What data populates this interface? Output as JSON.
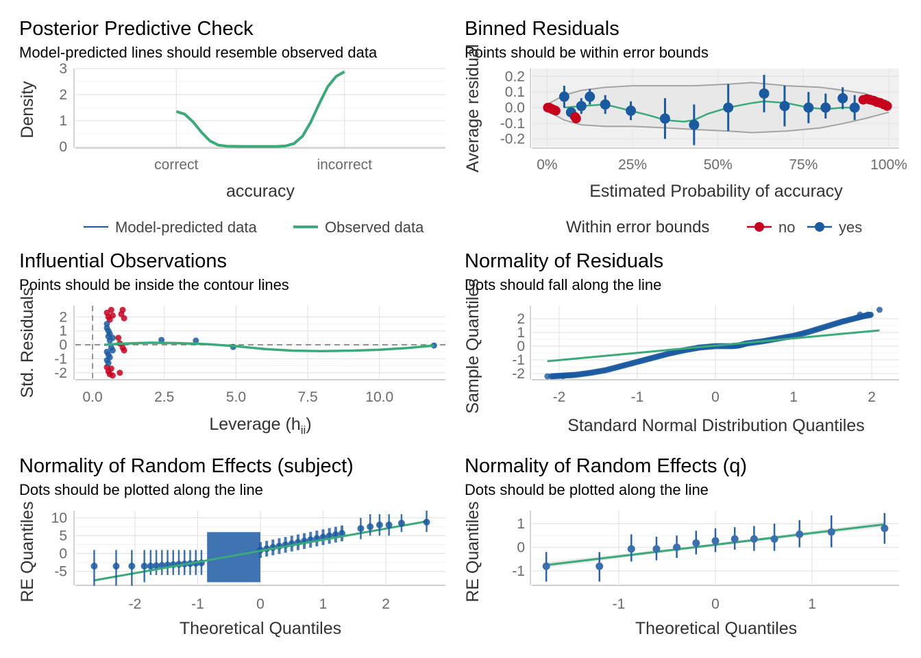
{
  "colors": {
    "green": "#3aaa78",
    "blue": "#1a5aa0",
    "red": "#c8001e",
    "grid": "#e3e3e3",
    "band": "#f0f0f0",
    "contour": "#a3a3a3"
  },
  "chart_data": [
    {
      "id": "ppc",
      "type": "line",
      "title": "Posterior Predictive Check",
      "subtitle": "Model-predicted lines should resemble observed data",
      "xlabel": "accuracy",
      "ylabel": "Density",
      "categories": [
        "correct",
        "incorrect"
      ],
      "yticks": [
        "0",
        "1",
        "2",
        "3"
      ],
      "ylim": [
        0,
        3
      ],
      "series": [
        {
          "name": "Observed data",
          "x": [
            0,
            0.05,
            0.1,
            0.15,
            0.2,
            0.25,
            0.3,
            0.4,
            0.5,
            0.6,
            0.65,
            0.7,
            0.75,
            0.8,
            0.85,
            0.9,
            0.95,
            1.0
          ],
          "y": [
            1.35,
            1.25,
            0.95,
            0.55,
            0.22,
            0.06,
            0.02,
            0.01,
            0.01,
            0.01,
            0.03,
            0.12,
            0.4,
            0.95,
            1.65,
            2.3,
            2.7,
            2.88
          ]
        }
      ],
      "legend": [
        "Model-predicted data",
        "Observed data"
      ],
      "legend_position": "bottom"
    },
    {
      "id": "binned",
      "type": "scatter",
      "title": "Binned Residuals",
      "subtitle": "Points should be within error bounds",
      "xlabel": "Estimated Probability of accuracy",
      "ylabel": "Average residual",
      "xticks": [
        "0%",
        "25%",
        "50%",
        "75%",
        "100%"
      ],
      "yticks": [
        "-0.2",
        "-0.1",
        "0.0",
        "0.1",
        "0.2"
      ],
      "xlim": [
        0,
        1
      ],
      "ylim": [
        -0.25,
        0.25
      ],
      "legend_title": "Within error bounds",
      "legend": [
        "no",
        "yes"
      ],
      "legend_position": "bottom",
      "yes_points": [
        {
          "x": 0.05,
          "y": 0.07,
          "lo": 0.0,
          "hi": 0.14
        },
        {
          "x": 0.07,
          "y": -0.03,
          "lo": -0.07,
          "hi": 0.0
        },
        {
          "x": 0.1,
          "y": 0.01,
          "lo": -0.04,
          "hi": 0.06
        },
        {
          "x": 0.125,
          "y": 0.07,
          "lo": 0.02,
          "hi": 0.12
        },
        {
          "x": 0.17,
          "y": 0.02,
          "lo": -0.04,
          "hi": 0.08
        },
        {
          "x": 0.245,
          "y": -0.02,
          "lo": -0.08,
          "hi": 0.04
        },
        {
          "x": 0.345,
          "y": -0.07,
          "lo": -0.2,
          "hi": 0.06
        },
        {
          "x": 0.43,
          "y": -0.11,
          "lo": -0.24,
          "hi": 0.02
        },
        {
          "x": 0.53,
          "y": 0.0,
          "lo": -0.15,
          "hi": 0.15
        },
        {
          "x": 0.635,
          "y": 0.09,
          "lo": -0.03,
          "hi": 0.21
        },
        {
          "x": 0.695,
          "y": 0.01,
          "lo": -0.12,
          "hi": 0.14
        },
        {
          "x": 0.765,
          "y": 0.0,
          "lo": -0.1,
          "hi": 0.1
        },
        {
          "x": 0.815,
          "y": 0.0,
          "lo": -0.07,
          "hi": 0.09
        },
        {
          "x": 0.865,
          "y": 0.06,
          "lo": -0.01,
          "hi": 0.13
        },
        {
          "x": 0.9,
          "y": 0.0,
          "lo": -0.08,
          "hi": 0.08
        }
      ],
      "no_points": [
        {
          "x": 0.002,
          "y": 0.0
        },
        {
          "x": 0.006,
          "y": 0.0
        },
        {
          "x": 0.01,
          "y": -0.005
        },
        {
          "x": 0.015,
          "y": -0.01
        },
        {
          "x": 0.02,
          "y": -0.015
        },
        {
          "x": 0.025,
          "y": -0.02
        },
        {
          "x": 0.082,
          "y": -0.06
        },
        {
          "x": 0.085,
          "y": -0.07
        },
        {
          "x": 0.925,
          "y": 0.05
        },
        {
          "x": 0.935,
          "y": 0.055
        },
        {
          "x": 0.945,
          "y": 0.05
        },
        {
          "x": 0.955,
          "y": 0.045
        },
        {
          "x": 0.965,
          "y": 0.035
        },
        {
          "x": 0.975,
          "y": 0.03
        },
        {
          "x": 0.985,
          "y": 0.02
        },
        {
          "x": 0.995,
          "y": 0.01
        }
      ],
      "smooth": {
        "x": [
          0.05,
          0.1,
          0.17,
          0.245,
          0.3,
          0.345,
          0.4,
          0.43,
          0.47,
          0.53,
          0.6,
          0.635,
          0.7,
          0.765,
          0.815,
          0.865,
          0.9
        ],
        "y": [
          0.0,
          0.01,
          0.02,
          -0.02,
          -0.05,
          -0.08,
          -0.09,
          -0.08,
          -0.04,
          0.0,
          0.03,
          0.04,
          0.03,
          0.0,
          -0.01,
          0.0,
          0.0
        ]
      },
      "bounds_upper": {
        "x": [
          0.0,
          0.05,
          0.1,
          0.17,
          0.25,
          0.35,
          0.43,
          0.53,
          0.6,
          0.7,
          0.8,
          0.87,
          0.93,
          1.0
        ],
        "y": [
          0.02,
          0.08,
          0.11,
          0.13,
          0.14,
          0.14,
          0.14,
          0.15,
          0.16,
          0.14,
          0.13,
          0.11,
          0.09,
          0.04
        ]
      },
      "bounds_lower": {
        "x": [
          0.0,
          0.05,
          0.1,
          0.17,
          0.25,
          0.35,
          0.43,
          0.53,
          0.6,
          0.7,
          0.8,
          0.87,
          0.93,
          1.0
        ],
        "y": [
          -0.02,
          -0.08,
          -0.11,
          -0.12,
          -0.12,
          -0.13,
          -0.14,
          -0.15,
          -0.16,
          -0.15,
          -0.13,
          -0.1,
          -0.07,
          -0.03
        ]
      }
    },
    {
      "id": "influence",
      "type": "scatter",
      "title": "Influential Observations",
      "subtitle": "Points should be inside the contour lines",
      "xlabel": "Leverage (h",
      "xlabel_sub": "ii",
      "xlabel_end": ")",
      "ylabel": "Std. Residuals",
      "xticks": [
        "0.0",
        "2.5",
        "5.0",
        "7.5",
        "10.0"
      ],
      "xtick_values": [
        0,
        2.5,
        5,
        7.5,
        10
      ],
      "yticks": [
        "-2",
        "-1",
        "0",
        "1",
        "2"
      ],
      "xlim": [
        -0.6,
        12.3
      ],
      "ylim": [
        -2.4,
        2.8
      ],
      "points_blue": [
        {
          "x": 0.5,
          "y": 1.5
        },
        {
          "x": 0.5,
          "y": 1.2
        },
        {
          "x": 0.55,
          "y": 1.0
        },
        {
          "x": 0.6,
          "y": 0.8
        },
        {
          "x": 0.55,
          "y": 0.6
        },
        {
          "x": 0.5,
          "y": -0.5
        },
        {
          "x": 0.55,
          "y": -0.7
        },
        {
          "x": 0.6,
          "y": -0.9
        },
        {
          "x": 0.5,
          "y": -1.1
        },
        {
          "x": 0.55,
          "y": -1.3
        },
        {
          "x": 0.6,
          "y": 0.3
        },
        {
          "x": 0.65,
          "y": -0.2
        },
        {
          "x": 0.7,
          "y": 0.5
        },
        {
          "x": 0.7,
          "y": -0.4
        },
        {
          "x": 2.4,
          "y": 0.35
        },
        {
          "x": 3.6,
          "y": 0.3
        },
        {
          "x": 4.9,
          "y": -0.15
        },
        {
          "x": 11.9,
          "y": -0.05
        }
      ],
      "points_red": [
        {
          "x": 0.5,
          "y": 2.3
        },
        {
          "x": 0.55,
          "y": 2.0
        },
        {
          "x": 0.6,
          "y": 1.8
        },
        {
          "x": 0.65,
          "y": 2.5
        },
        {
          "x": 0.7,
          "y": 2.1
        },
        {
          "x": 0.5,
          "y": -1.6
        },
        {
          "x": 0.55,
          "y": -1.9
        },
        {
          "x": 0.6,
          "y": -2.1
        },
        {
          "x": 0.65,
          "y": -1.7
        },
        {
          "x": 0.7,
          "y": -2.2
        },
        {
          "x": 1.0,
          "y": 2.2
        },
        {
          "x": 1.05,
          "y": 2.5
        },
        {
          "x": 1.1,
          "y": 1.9
        },
        {
          "x": 0.95,
          "y": -2.0
        },
        {
          "x": 1.05,
          "y": -0.2
        },
        {
          "x": 1.1,
          "y": -0.4
        },
        {
          "x": 0.9,
          "y": 0.5
        },
        {
          "x": 0.95,
          "y": 0.1
        }
      ],
      "smooth": {
        "x": [
          0.4,
          1.0,
          2.0,
          3.0,
          4.0,
          5.0,
          6.0,
          7.0,
          8.0,
          9.0,
          10.0,
          11.0,
          11.9
        ],
        "y": [
          0.0,
          0.08,
          0.15,
          0.12,
          0.05,
          -0.1,
          -0.3,
          -0.42,
          -0.45,
          -0.42,
          -0.35,
          -0.22,
          -0.05
        ]
      }
    },
    {
      "id": "qq",
      "type": "scatter",
      "title": "Normality of Residuals",
      "subtitle": "Dots should fall along the line",
      "xlabel": "Standard Normal Distribution Quantiles",
      "ylabel": "Sample Quantiles",
      "xticks": [
        "-2",
        "-1",
        "0",
        "1",
        "2"
      ],
      "yticks": [
        "-2",
        "-1",
        "0",
        "1",
        "2"
      ],
      "xlim": [
        -2.35,
        2.35
      ],
      "ylim": [
        -2.35,
        2.95
      ],
      "line": {
        "x": [
          -2.15,
          2.1
        ],
        "y": [
          -1.1,
          1.15
        ]
      },
      "curve": {
        "x": [
          -2.1,
          -1.95,
          -1.8,
          -1.6,
          -1.4,
          -1.2,
          -1.0,
          -0.8,
          -0.6,
          -0.4,
          -0.2,
          0.0,
          0.2,
          0.3,
          0.4,
          0.6,
          0.8,
          1.0,
          1.2,
          1.4,
          1.6,
          1.8,
          1.9,
          2.0
        ],
        "y": [
          -2.2,
          -2.15,
          -2.1,
          -1.95,
          -1.75,
          -1.45,
          -1.15,
          -0.85,
          -0.55,
          -0.3,
          -0.1,
          0.0,
          0.0,
          0.05,
          0.2,
          0.35,
          0.55,
          0.75,
          1.05,
          1.4,
          1.75,
          2.05,
          2.2,
          2.3
        ]
      },
      "extra_points": [
        {
          "x": -2.15,
          "y": -2.2
        },
        {
          "x": -1.95,
          "y": -2.18
        },
        {
          "x": 1.85,
          "y": 2.3
        },
        {
          "x": 1.95,
          "y": 2.3
        },
        {
          "x": 2.1,
          "y": 2.65
        }
      ]
    },
    {
      "id": "re_subject",
      "type": "scatter",
      "title": "Normality of Random Effects (subject)",
      "subtitle": "Dots should be plotted along the line",
      "xlabel": "Theoretical Quantiles",
      "ylabel": "RE Quantiles",
      "xticks": [
        "-2",
        "-1",
        "0",
        "1",
        "2"
      ],
      "yticks": [
        "-5",
        "0",
        "5",
        "10"
      ],
      "xlim": [
        -2.95,
        2.95
      ],
      "ylim": [
        -8.5,
        12
      ],
      "line": {
        "x": [
          -2.65,
          2.65
        ],
        "y": [
          -7.5,
          9.0
        ]
      },
      "points": [
        {
          "x": -2.65,
          "y": -3.5,
          "lo": -9,
          "hi": 1
        },
        {
          "x": -2.3,
          "y": -3.5,
          "lo": -9,
          "hi": 1
        },
        {
          "x": -2.05,
          "y": -3.5,
          "lo": -9,
          "hi": 1
        },
        {
          "x": -1.85,
          "y": -3.5,
          "lo": -8,
          "hi": 1
        },
        {
          "x": 1.6,
          "y": 7,
          "lo": 4,
          "hi": 10
        },
        {
          "x": 1.75,
          "y": 7.5,
          "lo": 5,
          "hi": 11
        },
        {
          "x": 1.9,
          "y": 8,
          "lo": 5,
          "hi": 11
        },
        {
          "x": 2.05,
          "y": 8,
          "lo": 5,
          "hi": 11
        },
        {
          "x": 2.25,
          "y": 8.5,
          "lo": 6,
          "hi": 11
        },
        {
          "x": 2.65,
          "y": 8.8,
          "lo": 6,
          "hi": 12
        }
      ],
      "block": {
        "x": [
          -0.85,
          0.0
        ],
        "y": [
          -8,
          6
        ]
      },
      "band_left": {
        "x": [
          -1.75,
          -0.85
        ],
        "y": [
          -3.5,
          -2.5
        ]
      },
      "band_right": {
        "x": [
          0.0,
          1.4
        ],
        "y": [
          1.0,
          6.0
        ]
      }
    },
    {
      "id": "re_q",
      "type": "scatter",
      "title": "Normality of Random Effects (q)",
      "subtitle": "Dots should be plotted along the line",
      "xlabel": "Theoretical Quantiles",
      "ylabel": "RE Quantiles",
      "xticks": [
        "-1",
        "0",
        "1"
      ],
      "yticks": [
        "-1",
        "0",
        "1"
      ],
      "xlim": [
        -1.9,
        1.9
      ],
      "ylim": [
        -1.55,
        1.55
      ],
      "line": {
        "x": [
          -1.75,
          1.75
        ],
        "y": [
          -0.75,
          0.97
        ]
      },
      "points": [
        {
          "x": -1.75,
          "y": -0.8,
          "lo": -1.45,
          "hi": -0.2
        },
        {
          "x": -1.2,
          "y": -0.8,
          "lo": -1.45,
          "hi": -0.2
        },
        {
          "x": -0.87,
          "y": -0.07,
          "lo": -0.6,
          "hi": 0.55
        },
        {
          "x": -0.61,
          "y": -0.07,
          "lo": -0.55,
          "hi": 0.45
        },
        {
          "x": -0.4,
          "y": 0.0,
          "lo": -0.45,
          "hi": 0.5
        },
        {
          "x": -0.2,
          "y": 0.18,
          "lo": -0.3,
          "hi": 0.7
        },
        {
          "x": 0.0,
          "y": 0.27,
          "lo": -0.2,
          "hi": 0.8
        },
        {
          "x": 0.2,
          "y": 0.35,
          "lo": -0.1,
          "hi": 0.85
        },
        {
          "x": 0.4,
          "y": 0.35,
          "lo": -0.15,
          "hi": 0.9
        },
        {
          "x": 0.61,
          "y": 0.35,
          "lo": -0.15,
          "hi": 1.0
        },
        {
          "x": 0.87,
          "y": 0.55,
          "lo": 0.0,
          "hi": 1.15
        },
        {
          "x": 1.2,
          "y": 0.65,
          "lo": 0.0,
          "hi": 1.35
        },
        {
          "x": 1.75,
          "y": 0.8,
          "lo": 0.15,
          "hi": 1.45
        }
      ]
    }
  ]
}
